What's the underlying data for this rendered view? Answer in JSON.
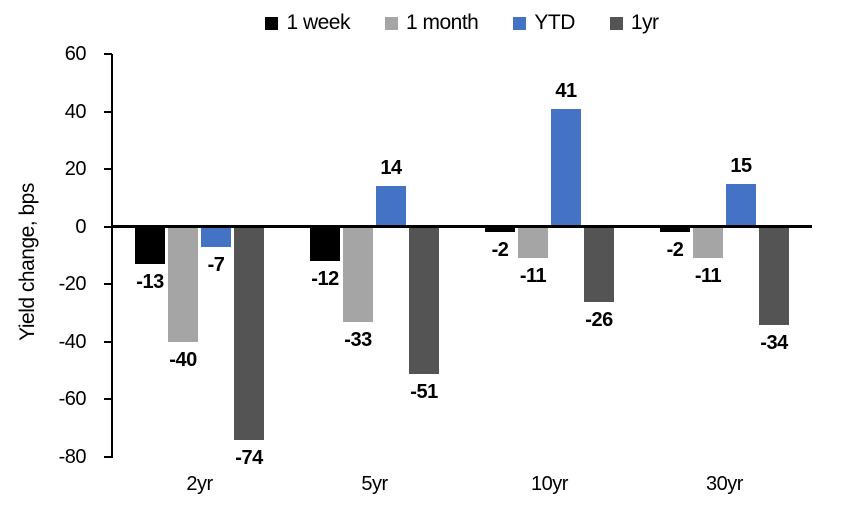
{
  "chart_data": {
    "type": "bar",
    "title": "",
    "ylabel": "Yield change, bps",
    "xlabel": "",
    "categories": [
      "2yr",
      "5yr",
      "10yr",
      "30yr"
    ],
    "series": [
      {
        "name": "1 week",
        "color": "#000000",
        "values": [
          -13,
          -12,
          -2,
          -2
        ]
      },
      {
        "name": "1 month",
        "color": "#A5A5A5",
        "values": [
          -40,
          -33,
          -11,
          -11
        ]
      },
      {
        "name": "YTD",
        "color": "#4472C4",
        "values": [
          -7,
          14,
          41,
          15
        ]
      },
      {
        "name": "1yr",
        "color": "#545454",
        "values": [
          -74,
          -51,
          -26,
          -34
        ]
      }
    ],
    "ylim": [
      -80,
      60
    ],
    "yticks": [
      60,
      40,
      20,
      0,
      -20,
      -40,
      -60,
      -80
    ],
    "legend_position": "top",
    "grid": false,
    "data_labels": true,
    "axis_color": "#000000"
  }
}
